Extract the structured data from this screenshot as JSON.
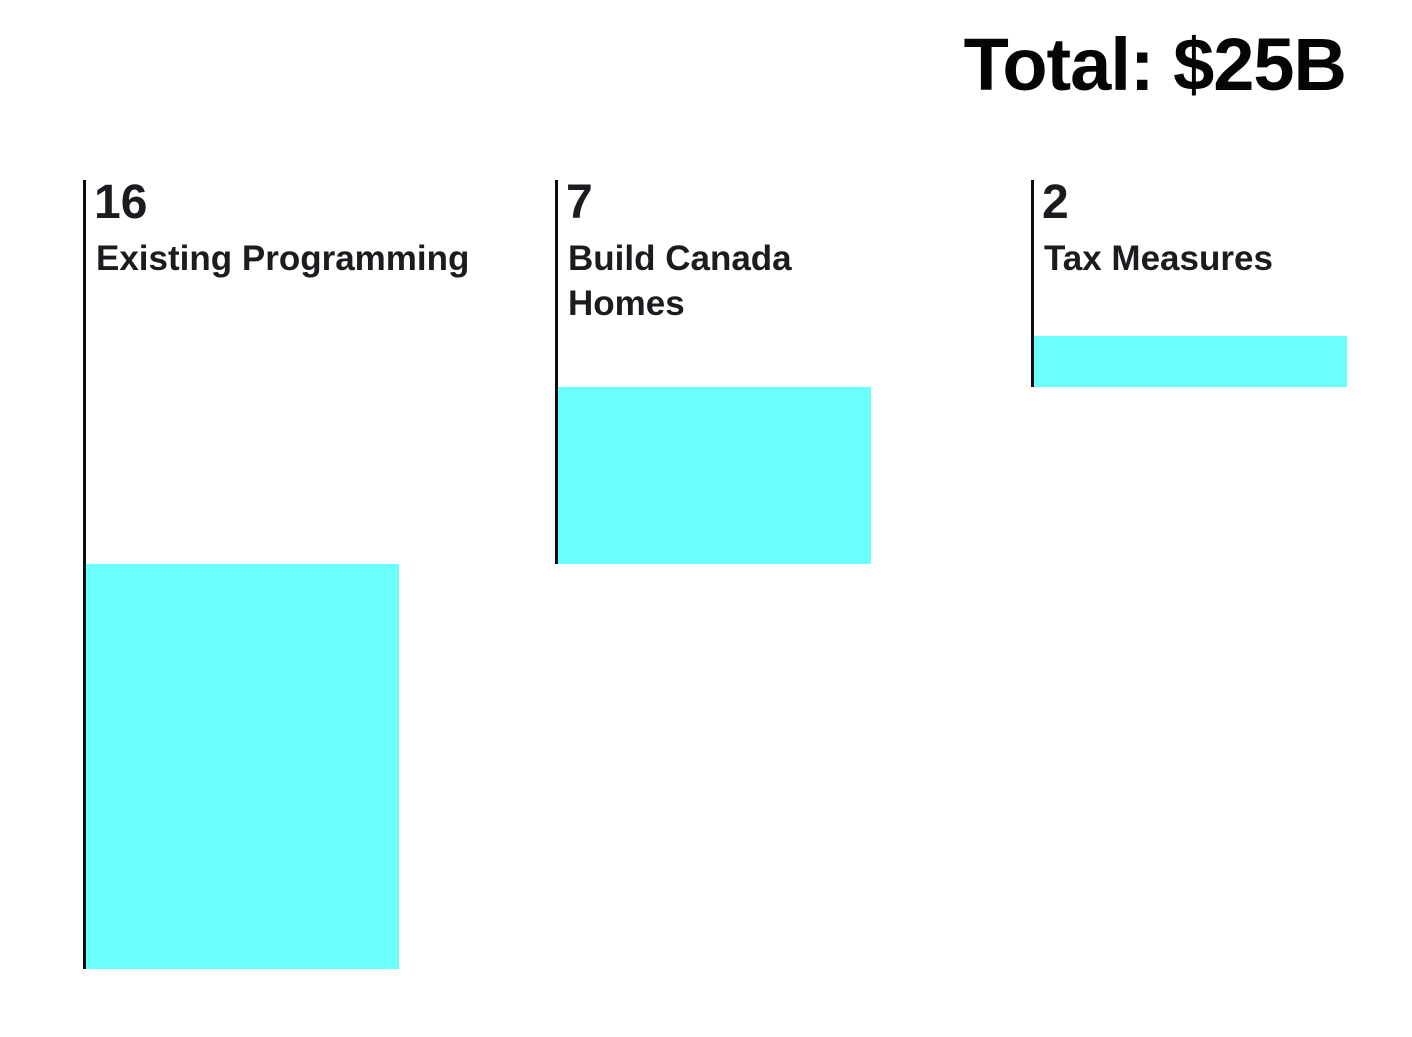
{
  "header": {
    "title": "Total: $25B"
  },
  "chart_data": {
    "type": "bar",
    "subtype": "waterfall",
    "orientation": "vertical",
    "title": "Total: $25B",
    "total_value": 25,
    "unit": "$B",
    "categories": [
      "Existing Programming",
      "Build Canada\nHomes",
      "Tax Measures"
    ],
    "values": [
      16,
      7,
      2
    ],
    "value_labels": [
      "16",
      "7",
      "2"
    ],
    "bar_color": "#6AFEFC",
    "axis_line_color": "#0d0d0d",
    "text_color": "#1a1c1f",
    "background_color": "#ffffff",
    "grid": false,
    "legend": "none",
    "layout_note": "segments stack sequentially: each bar's top edge meets the next bar's bottom edge"
  }
}
